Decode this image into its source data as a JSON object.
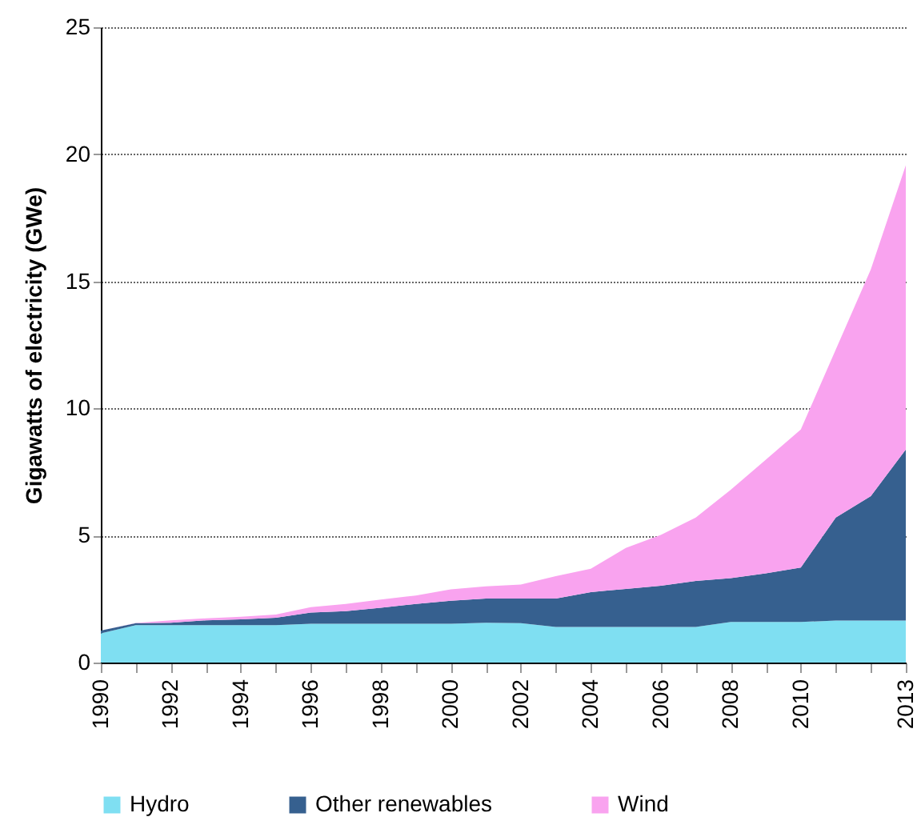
{
  "chart_data": {
    "type": "area",
    "ylabel": "Gigawatts of electricity (GWe)",
    "stacked": true,
    "grid": "y",
    "legend": "bottom",
    "x": [
      1990,
      1991,
      1992,
      1993,
      1994,
      1995,
      1996,
      1997,
      1998,
      1999,
      2000,
      2001,
      2002,
      2003,
      2004,
      2005,
      2006,
      2007,
      2008,
      2009,
      2010,
      2011,
      2012,
      2013
    ],
    "xlim": [
      1990,
      2013
    ],
    "xticks": [
      1990,
      {
        "value": 1991,
        "label": null
      },
      1992,
      {
        "value": 1993,
        "label": null
      },
      1994,
      {
        "value": 1995,
        "label": null
      },
      1996,
      {
        "value": 1997,
        "label": null
      },
      1998,
      {
        "value": 1999,
        "label": null
      },
      2000,
      {
        "value": 2001,
        "label": null
      },
      2002,
      {
        "value": 2003,
        "label": null
      },
      2004,
      {
        "value": 2005,
        "label": null
      },
      2006,
      {
        "value": 2007,
        "label": null
      },
      2008,
      {
        "value": 2009,
        "label": null
      },
      2010,
      {
        "value": 2011,
        "label": null
      },
      {
        "value": 2012,
        "label": null
      },
      2013
    ],
    "ylim": [
      0,
      25
    ],
    "yticks": [
      0,
      5,
      10,
      15,
      20,
      25
    ],
    "series": [
      {
        "name": "Hydro",
        "color": "#7fdff2",
        "values": [
          1.15,
          1.47,
          1.47,
          1.47,
          1.47,
          1.47,
          1.53,
          1.53,
          1.53,
          1.53,
          1.53,
          1.57,
          1.55,
          1.4,
          1.4,
          1.4,
          1.4,
          1.4,
          1.6,
          1.6,
          1.6,
          1.65,
          1.65,
          1.65
        ]
      },
      {
        "name": "Other renewables",
        "color": "#36608f",
        "values": [
          0.11,
          0.08,
          0.1,
          0.19,
          0.23,
          0.29,
          0.44,
          0.49,
          0.63,
          0.78,
          0.9,
          0.95,
          0.97,
          1.12,
          1.37,
          1.5,
          1.62,
          1.81,
          1.72,
          1.91,
          2.14,
          4.06,
          4.9,
          6.73
        ]
      },
      {
        "name": "Wind",
        "color": "#f9a3ef",
        "values": [
          0,
          0.01,
          0.09,
          0.08,
          0.1,
          0.13,
          0.21,
          0.29,
          0.32,
          0.33,
          0.45,
          0.48,
          0.55,
          0.88,
          0.92,
          1.61,
          2.0,
          2.5,
          3.48,
          4.47,
          5.43,
          6.61,
          8.92,
          11.19
        ]
      }
    ]
  }
}
